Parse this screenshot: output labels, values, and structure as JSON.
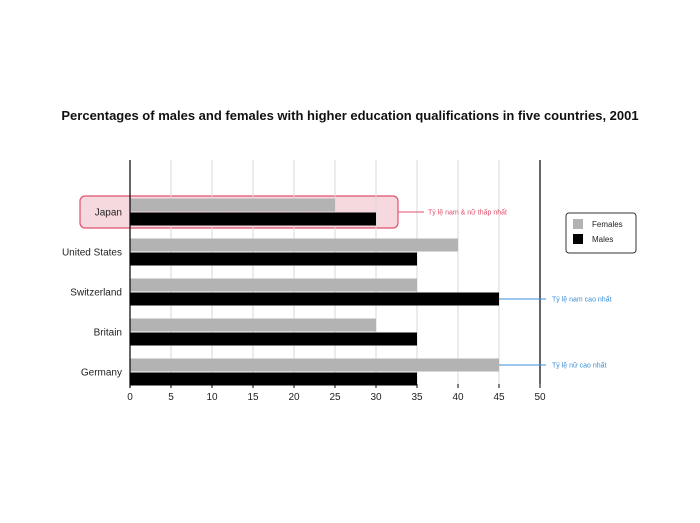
{
  "chart_data": {
    "type": "bar",
    "orientation": "horizontal",
    "title": "Percentages of males and females with higher education qualifications in five countries, 2001",
    "categories": [
      "Japan",
      "United States",
      "Switzerland",
      "Britain",
      "Germany"
    ],
    "series": [
      {
        "name": "Females",
        "color": "#b3b3b3",
        "values": [
          25,
          40,
          35,
          30,
          45
        ]
      },
      {
        "name": "Males",
        "color": "#000000",
        "values": [
          30,
          35,
          45,
          35,
          35
        ]
      }
    ],
    "xlim": [
      0,
      50
    ],
    "xticks": [
      0,
      5,
      10,
      15,
      20,
      25,
      30,
      35,
      40,
      45,
      50
    ],
    "grid": "vertical",
    "legend": "right",
    "highlight": {
      "category": "Japan",
      "color": "#f6d9de",
      "border": "#e0516d"
    },
    "annotations": [
      {
        "text": "Tỷ lệ nam & nữ thấp nhất",
        "category": "Japan",
        "color": "#e0516d"
      },
      {
        "text": "Tỷ lệ nam cao nhất",
        "category": "Switzerland",
        "series": "Males",
        "color": "#3b8fd6"
      },
      {
        "text": "Tỷ lệ nữ cao nhất",
        "category": "Germany",
        "series": "Females",
        "color": "#3b8fd6"
      }
    ]
  }
}
